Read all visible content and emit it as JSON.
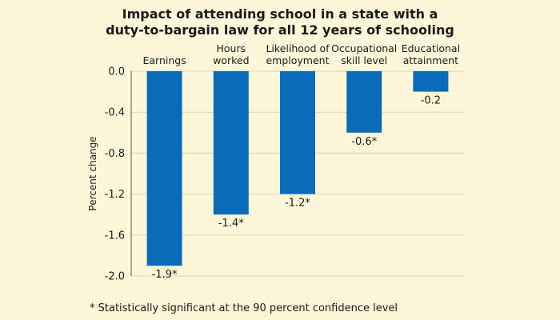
{
  "chart_data": {
    "type": "bar",
    "title_lines": [
      "Impact of attending school in a state with a",
      "duty-to-bargain law for all 12 years of schooling"
    ],
    "ylabel": "Percent change",
    "ylim": [
      -2.0,
      0.0
    ],
    "yticks": [
      "0.0",
      "-0.4",
      "-0.8",
      "-1.2",
      "-1.6",
      "-2.0"
    ],
    "ytick_values": [
      0.0,
      -0.4,
      -0.8,
      -1.2,
      -1.6,
      -2.0
    ],
    "grid": true,
    "categories": [
      [
        "Earnings"
      ],
      [
        "Hours",
        "worked"
      ],
      [
        "Likelihood of",
        "employment"
      ],
      [
        "Occupational",
        "skill level"
      ],
      [
        "Educational",
        "attainment"
      ]
    ],
    "values": [
      -1.9,
      -1.4,
      -1.2,
      -0.6,
      -0.2
    ],
    "data_labels": [
      "-1.9*",
      "-1.4*",
      "-1.2*",
      "-0.6*",
      "-0.2"
    ],
    "bar_color": "#0a6cb8",
    "footnote": "* Statistically significant at the 90 percent confidence level"
  }
}
